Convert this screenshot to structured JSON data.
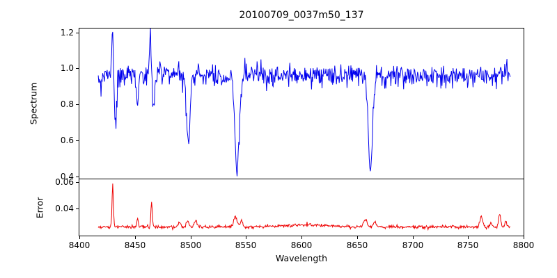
{
  "chart_data": {
    "type": "line",
    "title": "20100709_0037m50_137",
    "xlabel": "Wavelength",
    "xlim": [
      8400,
      8800
    ],
    "grid": false,
    "legend": "none",
    "xticks": [
      {
        "value": 8400,
        "label": "8400"
      },
      {
        "value": 8450,
        "label": "8450"
      },
      {
        "value": 8500,
        "label": "8500"
      },
      {
        "value": 8550,
        "label": "8550"
      },
      {
        "value": 8600,
        "label": "8600"
      },
      {
        "value": 8650,
        "label": "8650"
      },
      {
        "value": 8700,
        "label": "8700"
      },
      {
        "value": 8750,
        "label": "8750"
      },
      {
        "value": 8800,
        "label": "8800"
      }
    ],
    "subplots": [
      {
        "name": "spectrum",
        "ylabel": "Spectrum",
        "ylim": [
          0.388,
          1.222
        ],
        "yticks": [
          {
            "value": 0.4,
            "label": "0.4"
          },
          {
            "value": 0.6,
            "label": "0.6"
          },
          {
            "value": 0.8,
            "label": "0.8"
          },
          {
            "value": 1.0,
            "label": "1.0"
          },
          {
            "value": 1.2,
            "label": "1.2"
          }
        ],
        "series": {
          "name": "spectrum-flux",
          "color": "#0000ee",
          "x_start": 8417,
          "x_end": 8788,
          "step": 0.5,
          "baseline": 0.962,
          "noise_sigma": 0.03,
          "seed": 20100709,
          "features": [
            {
              "center": 8419.5,
              "amp": -0.07,
              "width": 1.0
            },
            {
              "center": 8429.8,
              "amp": 0.235,
              "width": 1.0
            },
            {
              "center": 8432.8,
              "amp": -0.29,
              "width": 1.3
            },
            {
              "center": 8452.5,
              "amp": -0.155,
              "width": 1.2
            },
            {
              "center": 8463.8,
              "amp": 0.235,
              "width": 1.0
            },
            {
              "center": 8466.8,
              "amp": -0.175,
              "width": 1.4
            },
            {
              "center": 8498.0,
              "amp": -0.37,
              "width": 2.2
            },
            {
              "center": 8542.0,
              "amp": -0.535,
              "width": 2.8
            },
            {
              "center": 8662.0,
              "amp": -0.52,
              "width": 2.8
            }
          ]
        }
      },
      {
        "name": "error",
        "ylabel": "Error",
        "ylim": [
          0.02,
          0.062
        ],
        "yticks": [
          {
            "value": 0.04,
            "label": "0.04"
          },
          {
            "value": 0.06,
            "label": "0.06"
          }
        ],
        "series": {
          "name": "error-flux",
          "color": "#ee0000",
          "x_start": 8417,
          "x_end": 8788,
          "step": 0.5,
          "baseline": 0.0265,
          "noise_sigma": 0.0006,
          "seed": 137,
          "features": [
            {
              "center": 8430.0,
              "amp": 0.0315,
              "width": 0.9
            },
            {
              "center": 8452.5,
              "amp": 0.0065,
              "width": 0.9
            },
            {
              "center": 8465.0,
              "amp": 0.0185,
              "width": 0.9
            },
            {
              "center": 8490.0,
              "amp": 0.0035,
              "width": 1.4
            },
            {
              "center": 8497.5,
              "amp": 0.0045,
              "width": 1.6
            },
            {
              "center": 8504.5,
              "amp": 0.0055,
              "width": 1.4
            },
            {
              "center": 8540.5,
              "amp": 0.0075,
              "width": 2.2
            },
            {
              "center": 8546.0,
              "amp": 0.0045,
              "width": 1.5
            },
            {
              "center": 8604.0,
              "amp": 0.0015,
              "width": 25.0
            },
            {
              "center": 8657.5,
              "amp": 0.0055,
              "width": 2.4
            },
            {
              "center": 8666.0,
              "amp": 0.004,
              "width": 1.6
            },
            {
              "center": 8762.0,
              "amp": 0.008,
              "width": 1.6
            },
            {
              "center": 8770.5,
              "amp": 0.004,
              "width": 1.2
            },
            {
              "center": 8778.5,
              "amp": 0.0095,
              "width": 1.4
            },
            {
              "center": 8784.0,
              "amp": 0.0045,
              "width": 1.0
            }
          ]
        }
      }
    ]
  }
}
